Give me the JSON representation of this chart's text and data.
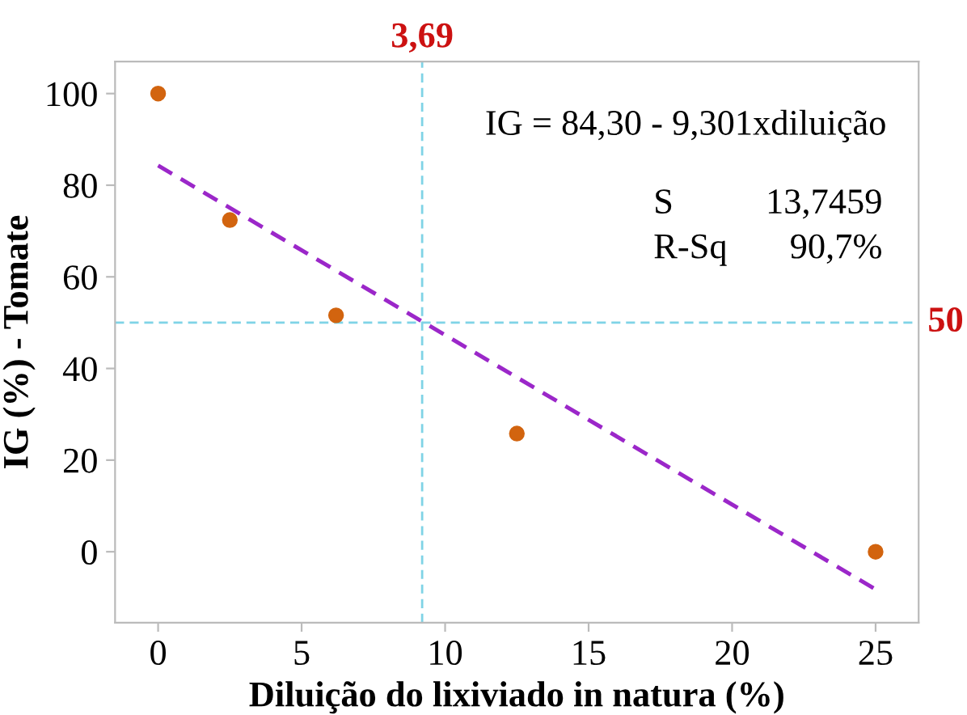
{
  "chart_data": {
    "type": "scatter",
    "xlabel": "Diluição do lixiviado in natura (%)",
    "ylabel": "IG (%) - Tomate",
    "series": [
      {
        "color": "#d2640f",
        "x": [
          0,
          2.5,
          6.2,
          12.5,
          25
        ],
        "values": [
          100,
          72.4,
          51.6,
          25.8,
          0
        ],
        "marker": "circle"
      },
      {
        "type": "line",
        "color": "#9b27c9",
        "x": [
          0,
          25
        ],
        "values": [
          84.3,
          -8.2
        ],
        "line_style": "dashed",
        "marker": "none"
      }
    ],
    "xlim": [
      -1.5,
      26.5
    ],
    "ylim": [
      -15.5,
      107
    ],
    "xticks": [
      0,
      5,
      10,
      15,
      20,
      25
    ],
    "yticks": [
      0,
      20,
      40,
      60,
      80,
      100
    ],
    "ref_lines": [
      {
        "axis": "x",
        "value": 9.2,
        "color": "#7fd3e6",
        "line_style": "dashed"
      },
      {
        "axis": "y",
        "value": 50,
        "label": "50",
        "color": "#7fd3e6",
        "line_style": "dashed"
      }
    ],
    "annotations": [
      {
        "text": "3,69",
        "x": 9.2,
        "y": 107
      },
      "IG = 84,30 - 9,301xdiluição",
      "S",
      "13,7459",
      "R-Sq",
      "90,7%"
    ],
    "grid": false,
    "legend": false
  }
}
